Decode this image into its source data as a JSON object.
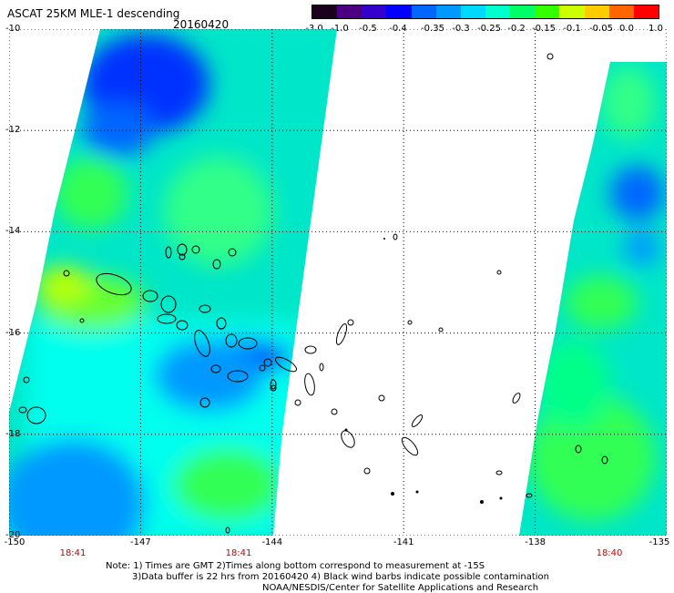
{
  "header": {
    "title": "ASCAT 25KM MLE-1 descending",
    "date": "20160420"
  },
  "colorbar": {
    "labels": [
      "-3.0",
      "-1.0",
      "-0.5",
      "-0.4",
      "-0.35",
      "-0.3",
      "-0.25",
      "-0.2",
      "-0.15",
      "-0.1",
      "-0.05",
      "0.0",
      "1.0"
    ],
    "colors": [
      "#1a001a",
      "#4a0080",
      "#3300cc",
      "#0000ff",
      "#0066ff",
      "#0099ff",
      "#00d9ff",
      "#00ffcc",
      "#00ff66",
      "#33ff00",
      "#ccff00",
      "#ffcc00",
      "#ff6600",
      "#ff0000"
    ]
  },
  "axes": {
    "lat_labels": [
      "-10",
      "-12",
      "-14",
      "-16",
      "-18",
      "-20"
    ],
    "lon_labels": [
      "-150",
      "-147",
      "-144",
      "-141",
      "-138",
      "-135"
    ],
    "time_labels": [
      "18:41",
      "18:41",
      "18:40"
    ]
  },
  "notes": {
    "line1": "Note: 1) Times are GMT 2)Times along bottom correspond to measurement at -15S",
    "line2": "3)Data buffer is 22 hrs from 20160420 4) Black wind barbs indicate possible contamination",
    "line3": "NOAA/NESDIS/Center for Satellite Applications and Research"
  },
  "map": {
    "lat_range": [
      -20,
      -10
    ],
    "lon_range": [
      -150,
      -135
    ],
    "grid": "dotted",
    "swaths": [
      "left",
      "right"
    ],
    "colors": {
      "cyan": "#00ffee",
      "teal": "#00e6c8",
      "green": "#33ff55",
      "lightblue": "#0099ff",
      "blue": "#0033ff",
      "deepblue": "#1a1aee",
      "yellowgreen": "#bbff00",
      "yellow": "#ffff00",
      "orange": "#ffaa00",
      "purple": "#5500cc",
      "land": "#000000"
    }
  }
}
